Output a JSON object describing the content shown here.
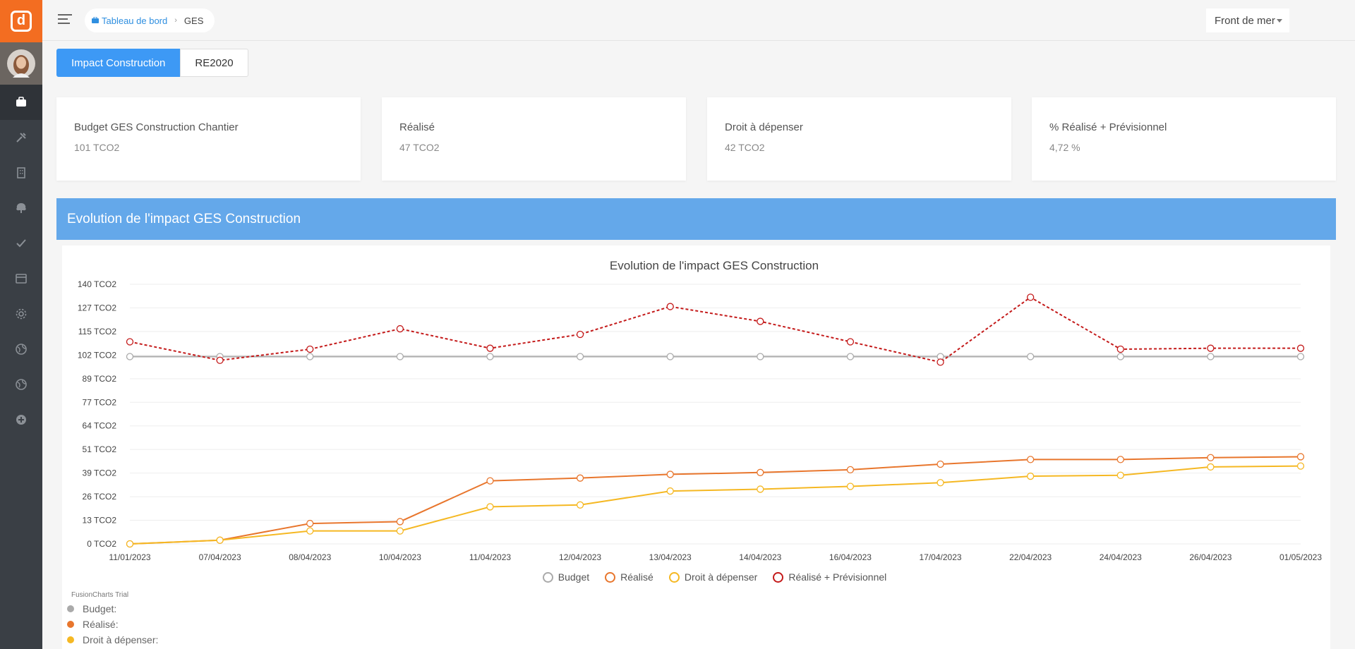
{
  "app": {
    "logo_letter": "d"
  },
  "sidebar": {
    "items": [
      {
        "name": "sidebar-item-dashboard",
        "icon": "briefcase-icon",
        "active": true
      },
      {
        "name": "sidebar-item-tools",
        "icon": "tools-icon"
      },
      {
        "name": "sidebar-item-building",
        "icon": "building-icon"
      },
      {
        "name": "sidebar-item-tree",
        "icon": "tree-icon"
      },
      {
        "name": "sidebar-item-tasks",
        "icon": "check-icon"
      },
      {
        "name": "sidebar-item-calendar",
        "icon": "calendar-icon"
      },
      {
        "name": "sidebar-item-settings",
        "icon": "gear-icon"
      },
      {
        "name": "sidebar-item-globe",
        "icon": "globe-icon"
      },
      {
        "name": "sidebar-item-globe-2",
        "icon": "globe-icon"
      },
      {
        "name": "sidebar-item-add",
        "icon": "plus-circle-icon"
      }
    ]
  },
  "header": {
    "breadcrumb_home": "Tableau de bord",
    "breadcrumb_current": "GES",
    "site_select": "Front de mer"
  },
  "tabs": [
    {
      "label": "Impact Construction",
      "active": true
    },
    {
      "label": "RE2020",
      "active": false
    }
  ],
  "cards": [
    {
      "label": "Budget GES Construction Chantier",
      "value": "101 TCO2"
    },
    {
      "label": "Réalisé",
      "value": "47 TCO2"
    },
    {
      "label": "Droit à dépenser",
      "value": "42 TCO2"
    },
    {
      "label": "% Réalisé + Prévisionnel",
      "value": "4,72 %"
    }
  ],
  "panel": {
    "title": "Evolution de l'impact GES Construction"
  },
  "chart_data": {
    "type": "line",
    "title": "Evolution de l'impact GES Construction",
    "x": [
      "11/01/2023",
      "07/04/2023",
      "08/04/2023",
      "10/04/2023",
      "11/04/2023",
      "12/04/2023",
      "13/04/2023",
      "14/04/2023",
      "16/04/2023",
      "17/04/2023",
      "22/04/2023",
      "24/04/2023",
      "26/04/2023",
      "01/05/2023"
    ],
    "y_ticks": [
      "0 TCO2",
      "13 TCO2",
      "26 TCO2",
      "39 TCO2",
      "51 TCO2",
      "64 TCO2",
      "77 TCO2",
      "89 TCO2",
      "102 TCO2",
      "115 TCO2",
      "127 TCO2",
      "140 TCO2"
    ],
    "ylim": [
      0,
      140
    ],
    "series": [
      {
        "name": "Budget",
        "color": "#aaaaaa",
        "dashed": false,
        "values": [
          101,
          101,
          101,
          101,
          101,
          101,
          101,
          101,
          101,
          101,
          101,
          101,
          101,
          101
        ]
      },
      {
        "name": "Réalisé",
        "color": "#e8762d",
        "dashed": false,
        "values": [
          0,
          2,
          11,
          12,
          34,
          35.5,
          37.5,
          38.5,
          40,
          43,
          45.5,
          45.5,
          46.5,
          47
        ]
      },
      {
        "name": "Droit à dépenser",
        "color": "#f5b823",
        "dashed": false,
        "values": [
          0,
          2,
          7,
          7,
          20,
          21,
          28.5,
          29.5,
          31,
          33,
          36.5,
          37,
          41.5,
          42
        ]
      },
      {
        "name": "Réalisé + Prévisionnel",
        "color": "#c41a1a",
        "dashed": true,
        "values": [
          109,
          99,
          105,
          116,
          105.5,
          113,
          128,
          120,
          109,
          98,
          133,
          105,
          105.5,
          105.5
        ]
      }
    ],
    "legend_position": "bottom",
    "grid": true
  },
  "watermark": "FusionCharts Trial",
  "tooltip": [
    {
      "label": "Budget:",
      "color": "#aaaaaa"
    },
    {
      "label": "Réalisé:",
      "color": "#e8762d"
    },
    {
      "label": "Droit à dépenser:",
      "color": "#f5b823"
    }
  ]
}
